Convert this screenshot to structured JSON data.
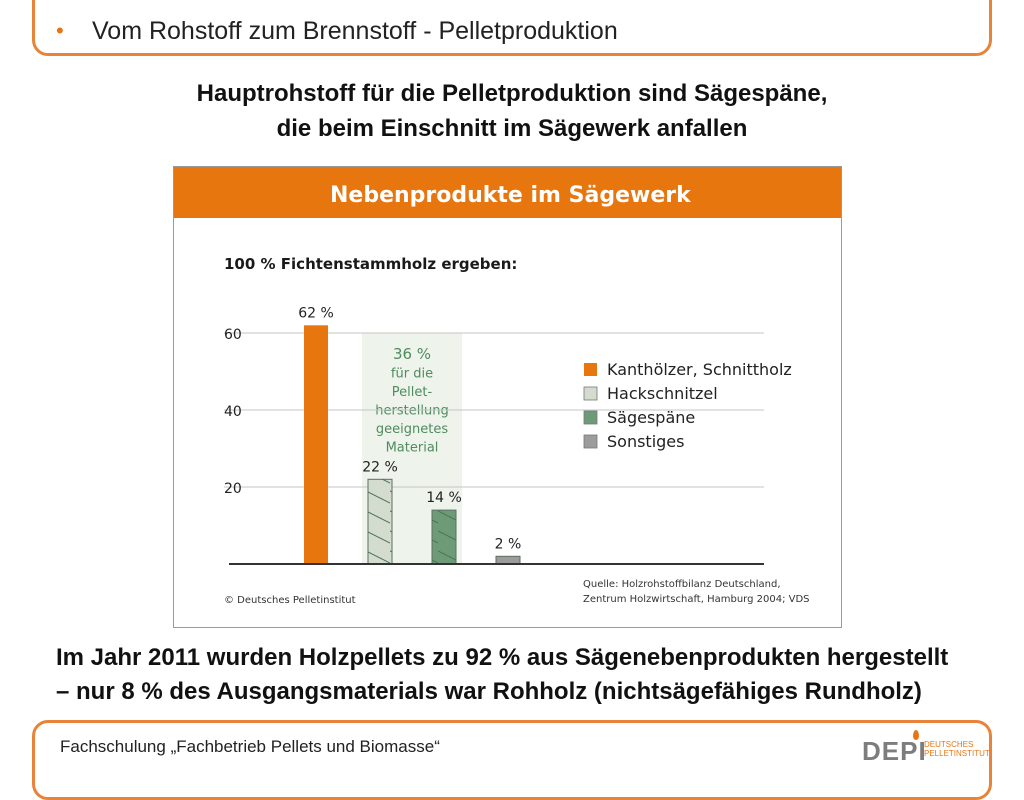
{
  "header": {
    "title": "Vom Rohstoff zum Brennstoff - Pelletproduktion"
  },
  "headline": {
    "line1": "Hauptrohstoff für die Pelletproduktion sind Sägespäne,",
    "line2": "die beim Einschnitt im Sägewerk anfallen"
  },
  "chart_data": {
    "type": "bar",
    "title": "Nebenprodukte im Sägewerk",
    "subtitle": "100 % Fichtenstammholz ergeben:",
    "categories": [
      "Kanthölzer, Schnittholz",
      "Hackschnitzel",
      "Sägespäne",
      "Sonstiges"
    ],
    "values": [
      62,
      22,
      14,
      2
    ],
    "value_labels": [
      "62 %",
      "22 %",
      "14 %",
      "2 %"
    ],
    "colors": [
      "#e8760f",
      "#d3dccf",
      "#6d9b78",
      "#9c9c9c"
    ],
    "yticks": [
      20,
      40,
      60
    ],
    "ylim": [
      0,
      75
    ],
    "grid": true,
    "legend_position": "right",
    "annotation": [
      "36 %",
      "für die",
      "Pellet-",
      "herstellung",
      "geeignetes",
      "Material"
    ],
    "copyright": "© Deutsches Pelletinstitut",
    "source": [
      "Quelle: Holzrohstoffbilanz Deutschland,",
      "Zentrum Holzwirtschaft, Hamburg 2004; VDS"
    ],
    "header_color": "#e8760f",
    "annotation_color": "#4f8c5e"
  },
  "bottom": {
    "line1": "Im Jahr 2011 wurden Holzpellets zu 92 % aus Sägenebenprodukten hergestellt",
    "line2": "– nur 8 % des Ausgangsmaterials war Rohholz (nichtsägefähiges Rundholz)"
  },
  "footer": {
    "text": "Fachschulung „Fachbetrieb Pellets und Biomasse“",
    "logo_main": "DEPI",
    "logo_sub1": "DEUTSCHES",
    "logo_sub2": "PELLETINSTITUT"
  }
}
